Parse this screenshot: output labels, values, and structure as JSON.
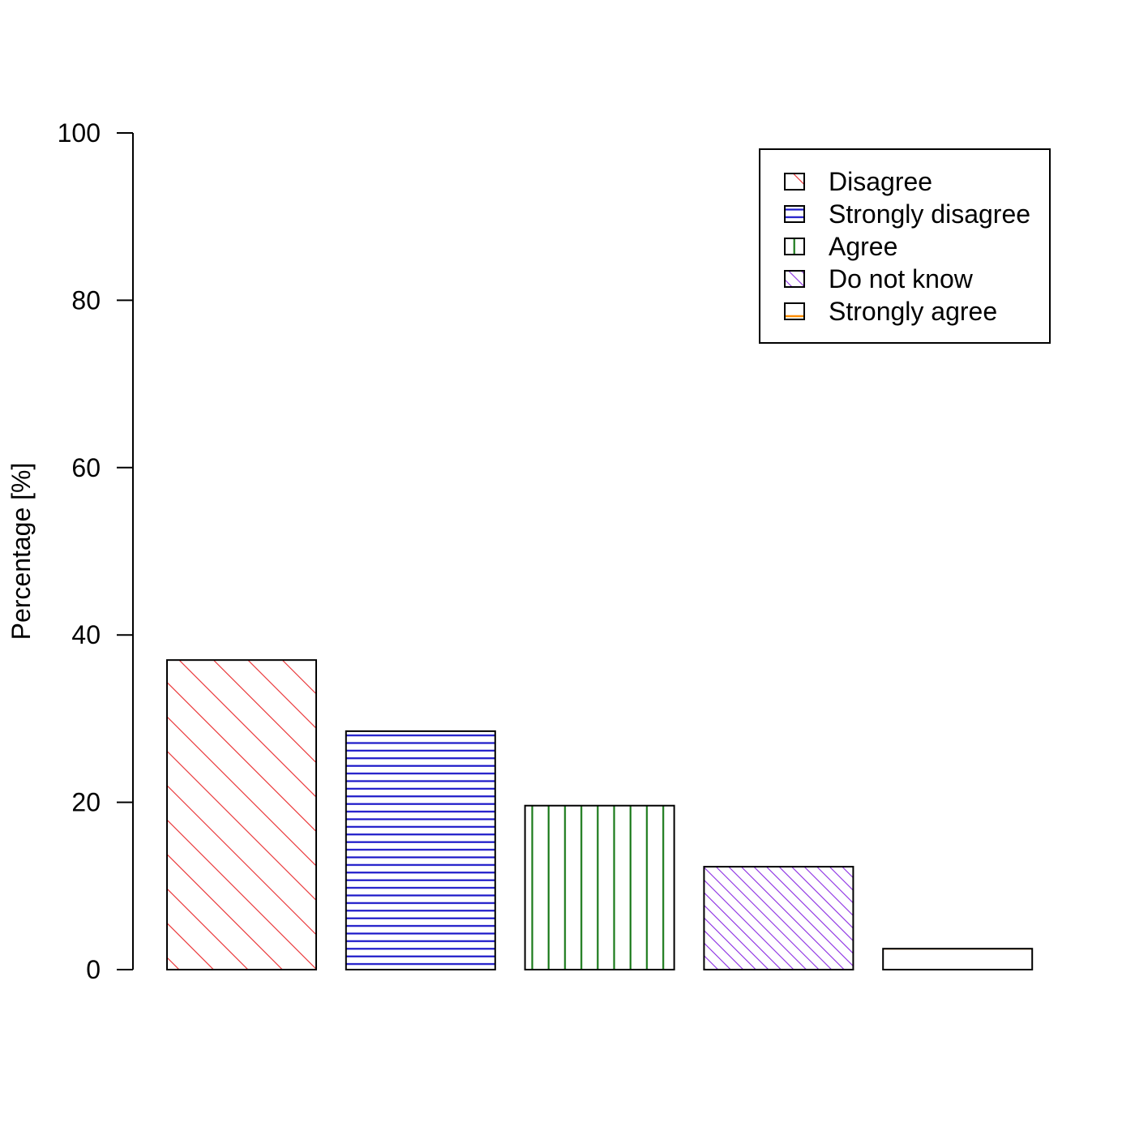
{
  "chart_data": {
    "type": "bar",
    "categories": [
      "Disagree",
      "Strongly disagree",
      "Agree",
      "Do not know",
      "Strongly agree"
    ],
    "values": [
      37.0,
      28.5,
      19.6,
      12.3,
      2.5
    ],
    "title": "",
    "xlabel": "",
    "ylabel": "Percentage [%]",
    "ylim": [
      0,
      100
    ],
    "yticks": [
      0,
      20,
      40,
      60,
      80,
      100
    ],
    "grid": false,
    "legend_position": "top-right",
    "fill_patterns": [
      "diagonal-45-sparse",
      "horizontal-dense",
      "vertical",
      "diagonal-45-dense",
      "horizontal"
    ],
    "colors": [
      "#e8282a",
      "#1a17c8",
      "#1a7a1a",
      "#8a2be2",
      "#ff8c00"
    ]
  }
}
